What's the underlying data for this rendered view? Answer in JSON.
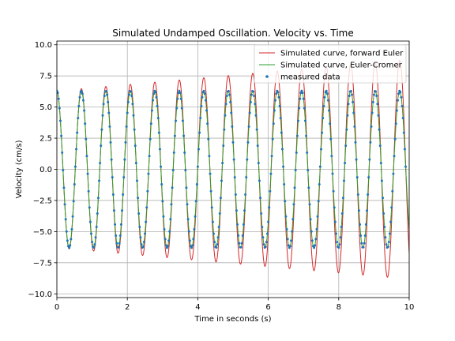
{
  "chart_data": {
    "type": "line",
    "title": "Simulated Undamped Oscillation. Velocity vs. Time",
    "xlabel": "Time in seconds (s)",
    "ylabel": "Velocity (cm/s)",
    "xlim": [
      0,
      10
    ],
    "ylim": [
      -10.3,
      10.3
    ],
    "xticks": [
      0,
      2,
      4,
      6,
      8,
      10
    ],
    "yticks": [
      -10.0,
      -7.5,
      -5.0,
      -2.5,
      0.0,
      2.5,
      5.0,
      7.5,
      10.0
    ],
    "xtick_labels": [
      "0",
      "2",
      "4",
      "6",
      "8",
      "10"
    ],
    "ytick_labels": [
      "−10.0",
      "−7.5",
      "−5.0",
      "−2.5",
      "0.0",
      "2.5",
      "5.0",
      "7.5",
      "10.0"
    ],
    "grid": true,
    "legend_position": "top-right",
    "period_s": 0.695,
    "series": [
      {
        "name": "Simulated curve, forward Euler",
        "style": "line",
        "color": "#d62728",
        "initial_amplitude": 6.3,
        "amplitude_growth_per_s": 0.04,
        "key_points": [
          [
            0,
            6.3
          ],
          [
            0.35,
            -6.35
          ],
          [
            0.7,
            6.5
          ],
          [
            4.2,
            7.5
          ],
          [
            5.6,
            8.0
          ],
          [
            7.6,
            -8.5
          ],
          [
            9.3,
            -9.3
          ],
          [
            10,
            -8.6
          ]
        ]
      },
      {
        "name": "Simulated curve, Euler-Cromer",
        "style": "line",
        "color": "#2ca02c",
        "amplitude": 6.3,
        "key_points": [
          [
            0,
            6.3
          ],
          [
            0.35,
            -6.3
          ],
          [
            0.7,
            6.3
          ],
          [
            10,
            -5.5
          ]
        ]
      },
      {
        "name": "measured data",
        "style": "scatter",
        "color": "#1f77b4",
        "amplitude": 6.3,
        "sample_interval_s": 0.025,
        "x_end": 9.9
      }
    ]
  }
}
